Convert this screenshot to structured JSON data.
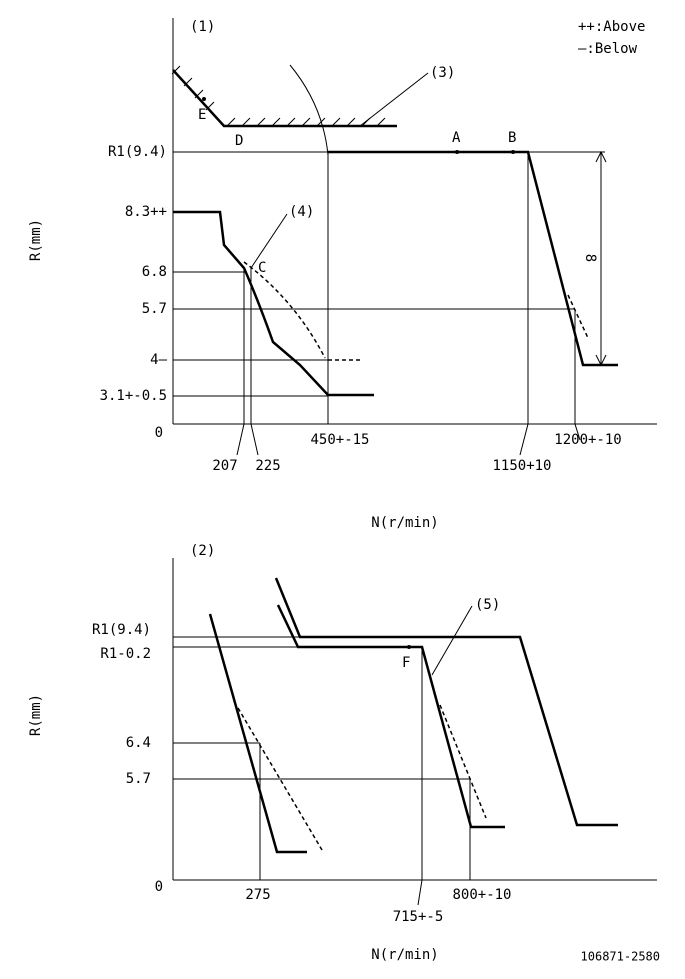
{
  "chart1": {
    "index": "(1)",
    "legend_above": "++:Above",
    "legend_below": "—:Below",
    "label_3": "(3)",
    "point_e": "E",
    "point_d": "D",
    "point_a": "A",
    "point_b": "B",
    "point_c": "C",
    "label_4": "(4)",
    "y_label": "R(mm)",
    "x_label": "N(r/min)",
    "y_ticks": [
      "R1(9.4)",
      "8.3++",
      "6.8",
      "5.7",
      "4—",
      "3.1+-0.5",
      "0"
    ],
    "x_ticks": [
      "207",
      "225",
      "450+-15",
      "1150+10",
      "1200+-10"
    ],
    "dimension": "8"
  },
  "chart2": {
    "index": "(2)",
    "label_5": "(5)",
    "point_f": "F",
    "y_label": "R(mm)",
    "x_label": "N(r/min)",
    "y_ticks": [
      "R1(9.4)",
      "R1-0.2",
      "6.4",
      "5.7",
      "0"
    ],
    "x_ticks": [
      "275",
      "715+-5",
      "800+-10"
    ]
  },
  "footer": {
    "code": "106871-2580"
  }
}
